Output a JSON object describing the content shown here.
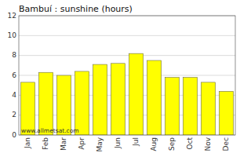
{
  "chart_data": {
    "type": "bar",
    "title": "Bambuí : sunshine (hours)",
    "categories": [
      "Jan",
      "Feb",
      "Mar",
      "Apr",
      "May",
      "Jun",
      "Jul",
      "Aug",
      "Sep",
      "Oct",
      "Nov",
      "Dec"
    ],
    "values": [
      5.3,
      6.3,
      6.0,
      6.4,
      7.1,
      7.2,
      8.2,
      7.5,
      5.8,
      5.8,
      5.3,
      4.4
    ],
    "color": "#ffff00",
    "ylim": [
      0,
      12
    ],
    "yticks": [
      0,
      2,
      4,
      6,
      8,
      10,
      12
    ],
    "grid": true,
    "annotations": [
      "www.allmetsat.com"
    ]
  }
}
